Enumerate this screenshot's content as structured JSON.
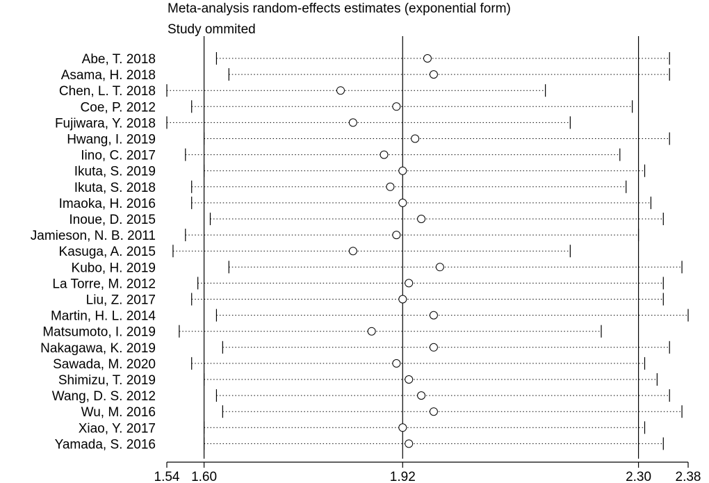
{
  "chart_data": {
    "type": "forest-sensitivity",
    "title": "Meta-analysis random-effects estimates (exponential form)",
    "subtitle": "Study ommited",
    "x_ticks": [
      "1.54",
      "1.60",
      "1.92",
      "2.30",
      "2.38"
    ],
    "xlim": [
      1.54,
      2.38
    ],
    "reference_lines": [
      1.6,
      1.92,
      2.3
    ],
    "studies": [
      {
        "label": "Abe, T. 2018",
        "estimate": 1.96,
        "lower": 1.62,
        "upper": 2.35
      },
      {
        "label": "Asama, H. 2018",
        "estimate": 1.97,
        "lower": 1.64,
        "upper": 2.35
      },
      {
        "label": "Chen, L. T. 2018",
        "estimate": 1.82,
        "lower": 1.54,
        "upper": 2.15
      },
      {
        "label": "Coe, P. 2012",
        "estimate": 1.91,
        "lower": 1.58,
        "upper": 2.29
      },
      {
        "label": "Fujiwara, Y. 2018",
        "estimate": 1.84,
        "lower": 1.54,
        "upper": 2.19
      },
      {
        "label": "Hwang, I. 2019",
        "estimate": 1.94,
        "lower": 1.6,
        "upper": 2.35
      },
      {
        "label": "Iino, C. 2017",
        "estimate": 1.89,
        "lower": 1.57,
        "upper": 2.27
      },
      {
        "label": "Ikuta, S. 2019",
        "estimate": 1.92,
        "lower": 1.6,
        "upper": 2.31
      },
      {
        "label": "Ikuta, S. 2018",
        "estimate": 1.9,
        "lower": 1.58,
        "upper": 2.28
      },
      {
        "label": "Imaoka, H. 2016",
        "estimate": 1.92,
        "lower": 1.58,
        "upper": 2.32
      },
      {
        "label": "Inoue, D. 2015",
        "estimate": 1.95,
        "lower": 1.61,
        "upper": 2.34
      },
      {
        "label": "Jamieson, N. B. 2011",
        "estimate": 1.91,
        "lower": 1.57,
        "upper": 2.3
      },
      {
        "label": "Kasuga, A. 2015",
        "estimate": 1.84,
        "lower": 1.55,
        "upper": 2.19
      },
      {
        "label": "Kubo, H. 2019",
        "estimate": 1.98,
        "lower": 1.64,
        "upper": 2.37
      },
      {
        "label": "La Torre, M. 2012",
        "estimate": 1.93,
        "lower": 1.59,
        "upper": 2.34
      },
      {
        "label": "Liu, Z. 2017",
        "estimate": 1.92,
        "lower": 1.58,
        "upper": 2.34
      },
      {
        "label": "Martin, H. L. 2014",
        "estimate": 1.97,
        "lower": 1.62,
        "upper": 2.38
      },
      {
        "label": "Matsumoto, I. 2019",
        "estimate": 1.87,
        "lower": 1.56,
        "upper": 2.24
      },
      {
        "label": "Nakagawa, K. 2019",
        "estimate": 1.97,
        "lower": 1.63,
        "upper": 2.35
      },
      {
        "label": "Sawada, M. 2020",
        "estimate": 1.91,
        "lower": 1.58,
        "upper": 2.31
      },
      {
        "label": "Shimizu, T. 2019",
        "estimate": 1.93,
        "lower": 1.6,
        "upper": 2.33
      },
      {
        "label": "Wang, D. S. 2012",
        "estimate": 1.95,
        "lower": 1.62,
        "upper": 2.35
      },
      {
        "label": "Wu, M. 2016",
        "estimate": 1.97,
        "lower": 1.63,
        "upper": 2.37
      },
      {
        "label": "Xiao, Y. 2017",
        "estimate": 1.92,
        "lower": 1.6,
        "upper": 2.31
      },
      {
        "label": "Yamada, S. 2016",
        "estimate": 1.93,
        "lower": 1.6,
        "upper": 2.34
      }
    ]
  }
}
